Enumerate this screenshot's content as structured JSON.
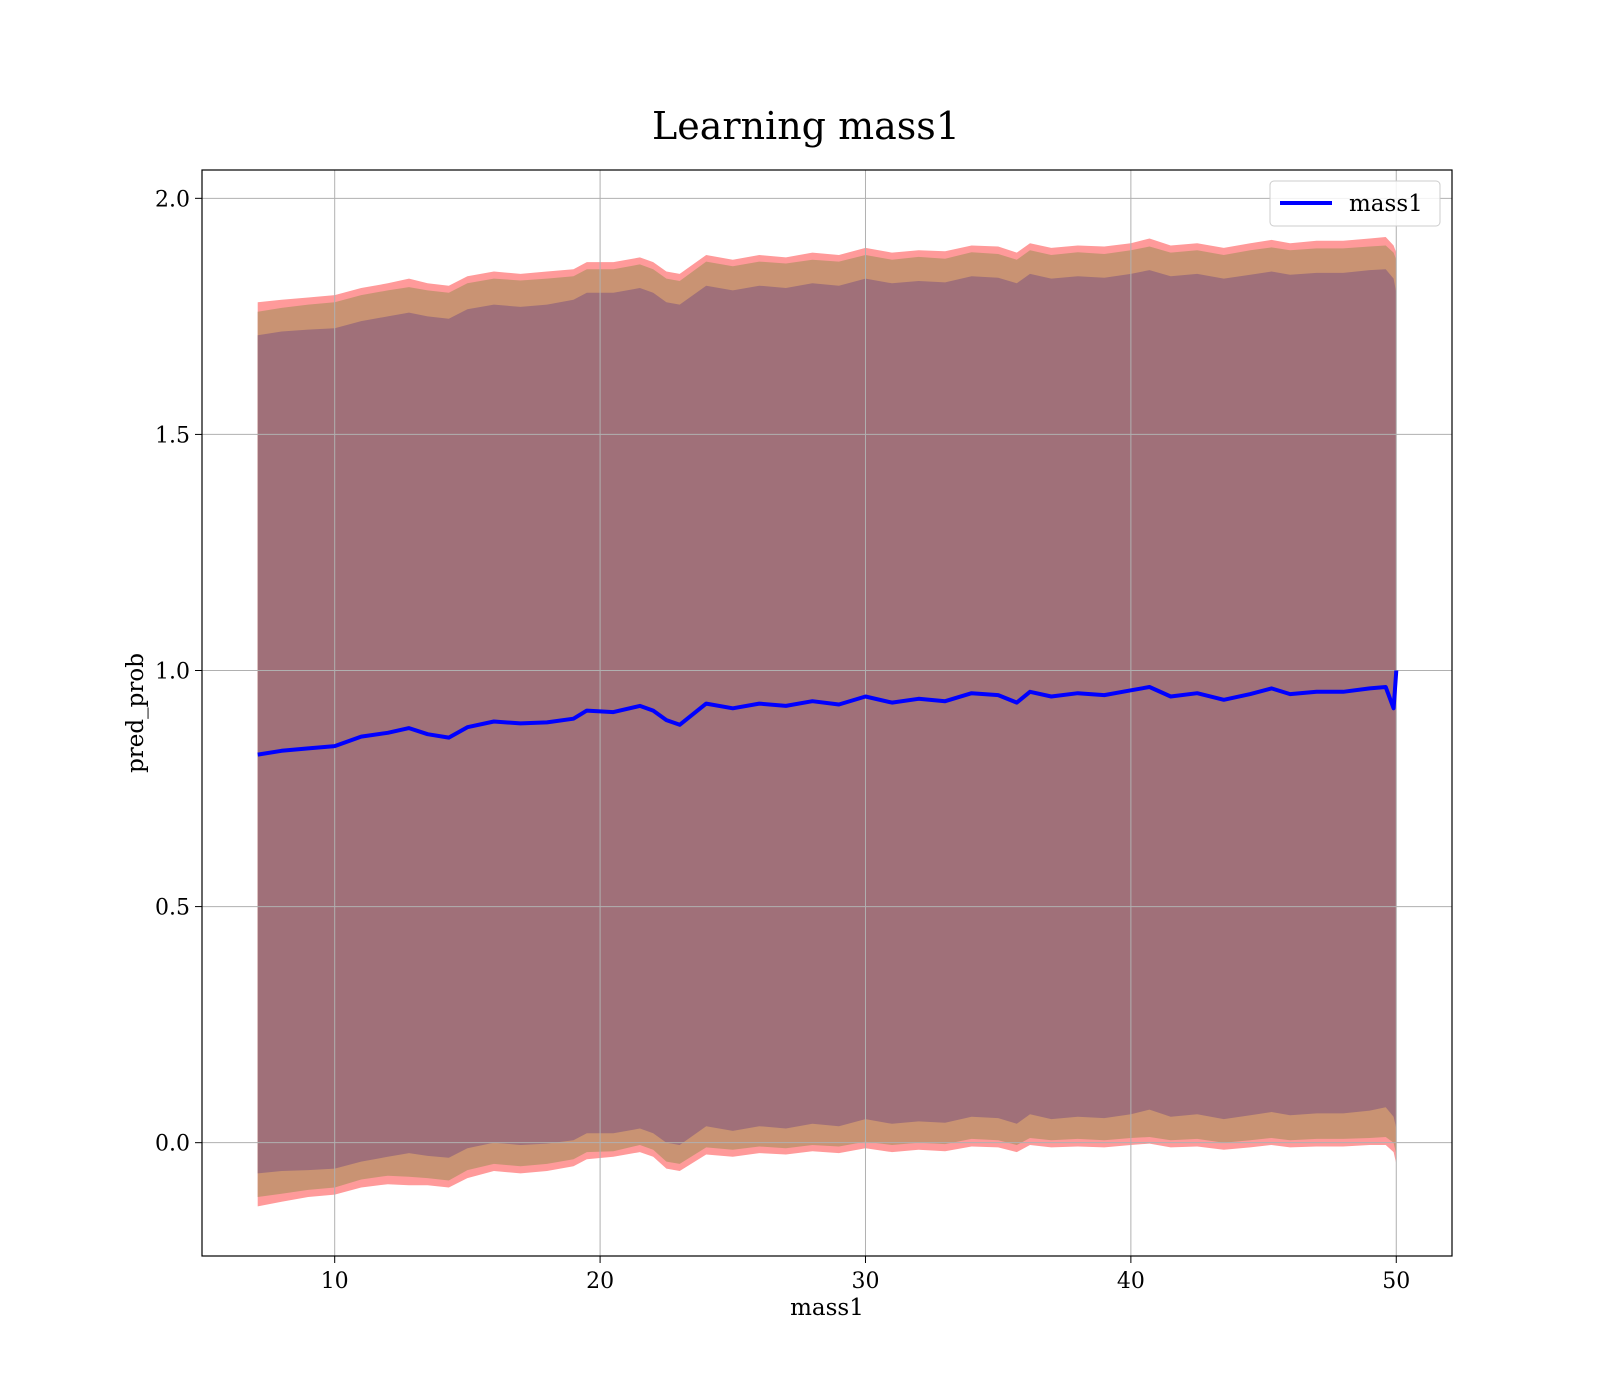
{
  "chart_data": {
    "type": "line",
    "title": "Learning mass1",
    "xlabel": "mass1",
    "ylabel": "pred_prob",
    "xlim": [
      5.0,
      52.1
    ],
    "ylim": [
      -0.24,
      2.06
    ],
    "xticks": [
      10,
      20,
      30,
      40,
      50
    ],
    "xtick_labels": [
      "10",
      "20",
      "30",
      "40",
      "50"
    ],
    "yticks": [
      0.0,
      0.5,
      1.0,
      1.5,
      2.0
    ],
    "ytick_labels": [
      "0.0",
      "0.5",
      "1.0",
      "1.5",
      "2.0"
    ],
    "grid": true,
    "legend": {
      "placement": "top-right",
      "entries": [
        "mass1"
      ]
    },
    "colors": {
      "line": "#0000ff",
      "band_outer": "#ff9a9a",
      "band_middle": "#c99373",
      "band_inner": "#a07079"
    },
    "series": [
      {
        "name": "mass1",
        "x": [
          7.1,
          8,
          9,
          10,
          11,
          12,
          12.8,
          13.5,
          14.3,
          15,
          16,
          17,
          18,
          19,
          19.5,
          20.5,
          21.5,
          22,
          22.5,
          23,
          24,
          25,
          26,
          27,
          28,
          29,
          30,
          31,
          32,
          33,
          34,
          35,
          35.7,
          36.2,
          37,
          38,
          39,
          40,
          40.7,
          41.5,
          42.5,
          43.5,
          44.5,
          45.3,
          46,
          47,
          48,
          49,
          49.6,
          49.9,
          50
        ],
        "y": [
          0.822,
          0.83,
          0.835,
          0.84,
          0.86,
          0.868,
          0.878,
          0.865,
          0.858,
          0.88,
          0.892,
          0.888,
          0.89,
          0.898,
          0.915,
          0.912,
          0.925,
          0.915,
          0.895,
          0.885,
          0.93,
          0.92,
          0.93,
          0.925,
          0.935,
          0.928,
          0.945,
          0.932,
          0.94,
          0.935,
          0.952,
          0.948,
          0.932,
          0.955,
          0.945,
          0.952,
          0.948,
          0.958,
          0.965,
          0.945,
          0.952,
          0.938,
          0.95,
          0.962,
          0.95,
          0.955,
          0.955,
          0.962,
          0.965,
          0.92,
          1.0
        ]
      }
    ],
    "bands": [
      {
        "label": "outer",
        "lower": [
          -0.135,
          -0.125,
          -0.115,
          -0.11,
          -0.095,
          -0.088,
          -0.09,
          -0.09,
          -0.095,
          -0.075,
          -0.06,
          -0.065,
          -0.06,
          -0.05,
          -0.035,
          -0.03,
          -0.02,
          -0.03,
          -0.055,
          -0.06,
          -0.025,
          -0.03,
          -0.022,
          -0.025,
          -0.018,
          -0.022,
          -0.012,
          -0.02,
          -0.015,
          -0.018,
          -0.008,
          -0.01,
          -0.02,
          -0.005,
          -0.01,
          -0.008,
          -0.01,
          -0.005,
          -0.002,
          -0.01,
          -0.008,
          -0.015,
          -0.01,
          -0.005,
          -0.01,
          -0.008,
          -0.008,
          -0.005,
          -0.005,
          -0.02,
          -0.045
        ],
        "upper": [
          1.78,
          1.785,
          1.79,
          1.795,
          1.81,
          1.82,
          1.83,
          1.82,
          1.815,
          1.835,
          1.845,
          1.84,
          1.845,
          1.85,
          1.865,
          1.865,
          1.875,
          1.865,
          1.845,
          1.84,
          1.88,
          1.87,
          1.88,
          1.875,
          1.885,
          1.88,
          1.895,
          1.885,
          1.89,
          1.888,
          1.9,
          1.898,
          1.885,
          1.905,
          1.895,
          1.9,
          1.898,
          1.905,
          1.915,
          1.9,
          1.905,
          1.895,
          1.905,
          1.912,
          1.905,
          1.91,
          1.91,
          1.915,
          1.918,
          1.9,
          1.885
        ]
      },
      {
        "label": "middle",
        "lower": [
          -0.115,
          -0.108,
          -0.1,
          -0.095,
          -0.078,
          -0.07,
          -0.072,
          -0.075,
          -0.08,
          -0.058,
          -0.045,
          -0.05,
          -0.045,
          -0.035,
          -0.02,
          -0.018,
          -0.005,
          -0.015,
          -0.04,
          -0.045,
          -0.01,
          -0.015,
          -0.008,
          -0.012,
          -0.005,
          -0.008,
          0.002,
          -0.005,
          0.0,
          -0.003,
          0.008,
          0.005,
          -0.005,
          0.01,
          0.005,
          0.008,
          0.005,
          0.01,
          0.012,
          0.005,
          0.008,
          0.0,
          0.005,
          0.01,
          0.005,
          0.008,
          0.008,
          0.01,
          0.012,
          0.0,
          -0.025
        ],
        "upper": [
          1.76,
          1.768,
          1.775,
          1.78,
          1.795,
          1.805,
          1.812,
          1.805,
          1.8,
          1.82,
          1.83,
          1.826,
          1.83,
          1.835,
          1.85,
          1.85,
          1.86,
          1.85,
          1.83,
          1.825,
          1.866,
          1.856,
          1.866,
          1.862,
          1.87,
          1.866,
          1.88,
          1.87,
          1.876,
          1.872,
          1.886,
          1.882,
          1.87,
          1.89,
          1.88,
          1.886,
          1.882,
          1.89,
          1.898,
          1.885,
          1.89,
          1.88,
          1.89,
          1.896,
          1.89,
          1.894,
          1.894,
          1.898,
          1.9,
          1.885,
          1.87
        ]
      },
      {
        "label": "inner",
        "lower": [
          -0.065,
          -0.06,
          -0.058,
          -0.055,
          -0.04,
          -0.03,
          -0.022,
          -0.028,
          -0.032,
          -0.012,
          0.0,
          -0.005,
          -0.002,
          0.005,
          0.02,
          0.02,
          0.03,
          0.02,
          0.0,
          -0.005,
          0.035,
          0.025,
          0.035,
          0.03,
          0.04,
          0.035,
          0.05,
          0.04,
          0.045,
          0.042,
          0.055,
          0.052,
          0.04,
          0.06,
          0.05,
          0.055,
          0.052,
          0.06,
          0.07,
          0.055,
          0.06,
          0.05,
          0.058,
          0.065,
          0.058,
          0.062,
          0.062,
          0.068,
          0.075,
          0.055,
          0.03
        ],
        "upper": [
          1.71,
          1.718,
          1.722,
          1.725,
          1.74,
          1.75,
          1.758,
          1.75,
          1.745,
          1.765,
          1.775,
          1.77,
          1.775,
          1.785,
          1.8,
          1.8,
          1.81,
          1.8,
          1.78,
          1.775,
          1.815,
          1.805,
          1.815,
          1.81,
          1.82,
          1.815,
          1.83,
          1.82,
          1.825,
          1.822,
          1.835,
          1.832,
          1.82,
          1.84,
          1.83,
          1.835,
          1.832,
          1.84,
          1.848,
          1.835,
          1.84,
          1.83,
          1.838,
          1.845,
          1.838,
          1.842,
          1.842,
          1.848,
          1.85,
          1.83,
          1.8
        ]
      }
    ]
  }
}
